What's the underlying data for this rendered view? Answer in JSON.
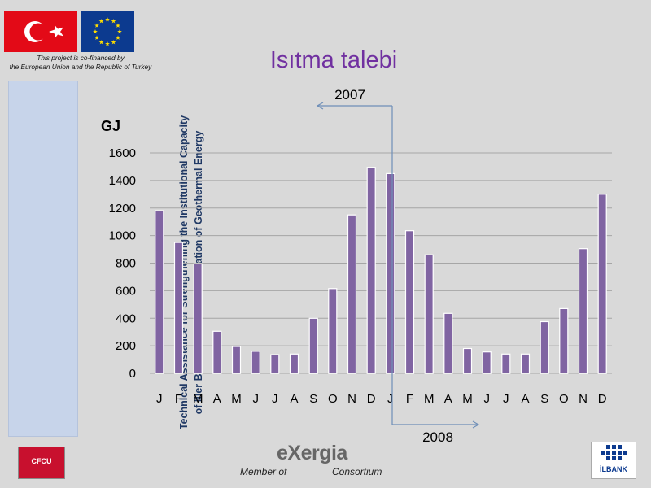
{
  "header": {
    "cofinance_line1": "This project is co-financed by",
    "cofinance_line2": "the European Union and the Republic of Turkey"
  },
  "sidebar": {
    "line1": "Technical Assistance for Strengthening the Institutional Capacity",
    "line2": "of Iller Bank on the Direct Utilization of Geothermal Energy"
  },
  "chart_data": {
    "type": "bar",
    "title": "Isıtma talebi",
    "ylabel": "GJ",
    "xlabel": "",
    "ylim": [
      0,
      1600
    ],
    "yticks": [
      0,
      200,
      400,
      600,
      800,
      1000,
      1200,
      1400,
      1600
    ],
    "grid": true,
    "categories": [
      "J",
      "F",
      "M",
      "A",
      "M",
      "J",
      "J",
      "A",
      "S",
      "O",
      "N",
      "D",
      "J",
      "F",
      "M",
      "A",
      "M",
      "J",
      "J",
      "A",
      "S",
      "O",
      "N",
      "D"
    ],
    "values": [
      1180,
      950,
      795,
      305,
      195,
      160,
      135,
      140,
      400,
      615,
      1150,
      1495,
      1450,
      1035,
      860,
      435,
      180,
      155,
      140,
      140,
      375,
      470,
      905,
      1300
    ],
    "color": "#8064a2",
    "annotations": [
      "2007",
      "2008"
    ]
  },
  "footer": {
    "cfcu_label": "CFCU",
    "exergia_label": "eXergia",
    "member_of": "Member of",
    "consortium": "Consortium",
    "ilbank_label": "İLBANK"
  }
}
